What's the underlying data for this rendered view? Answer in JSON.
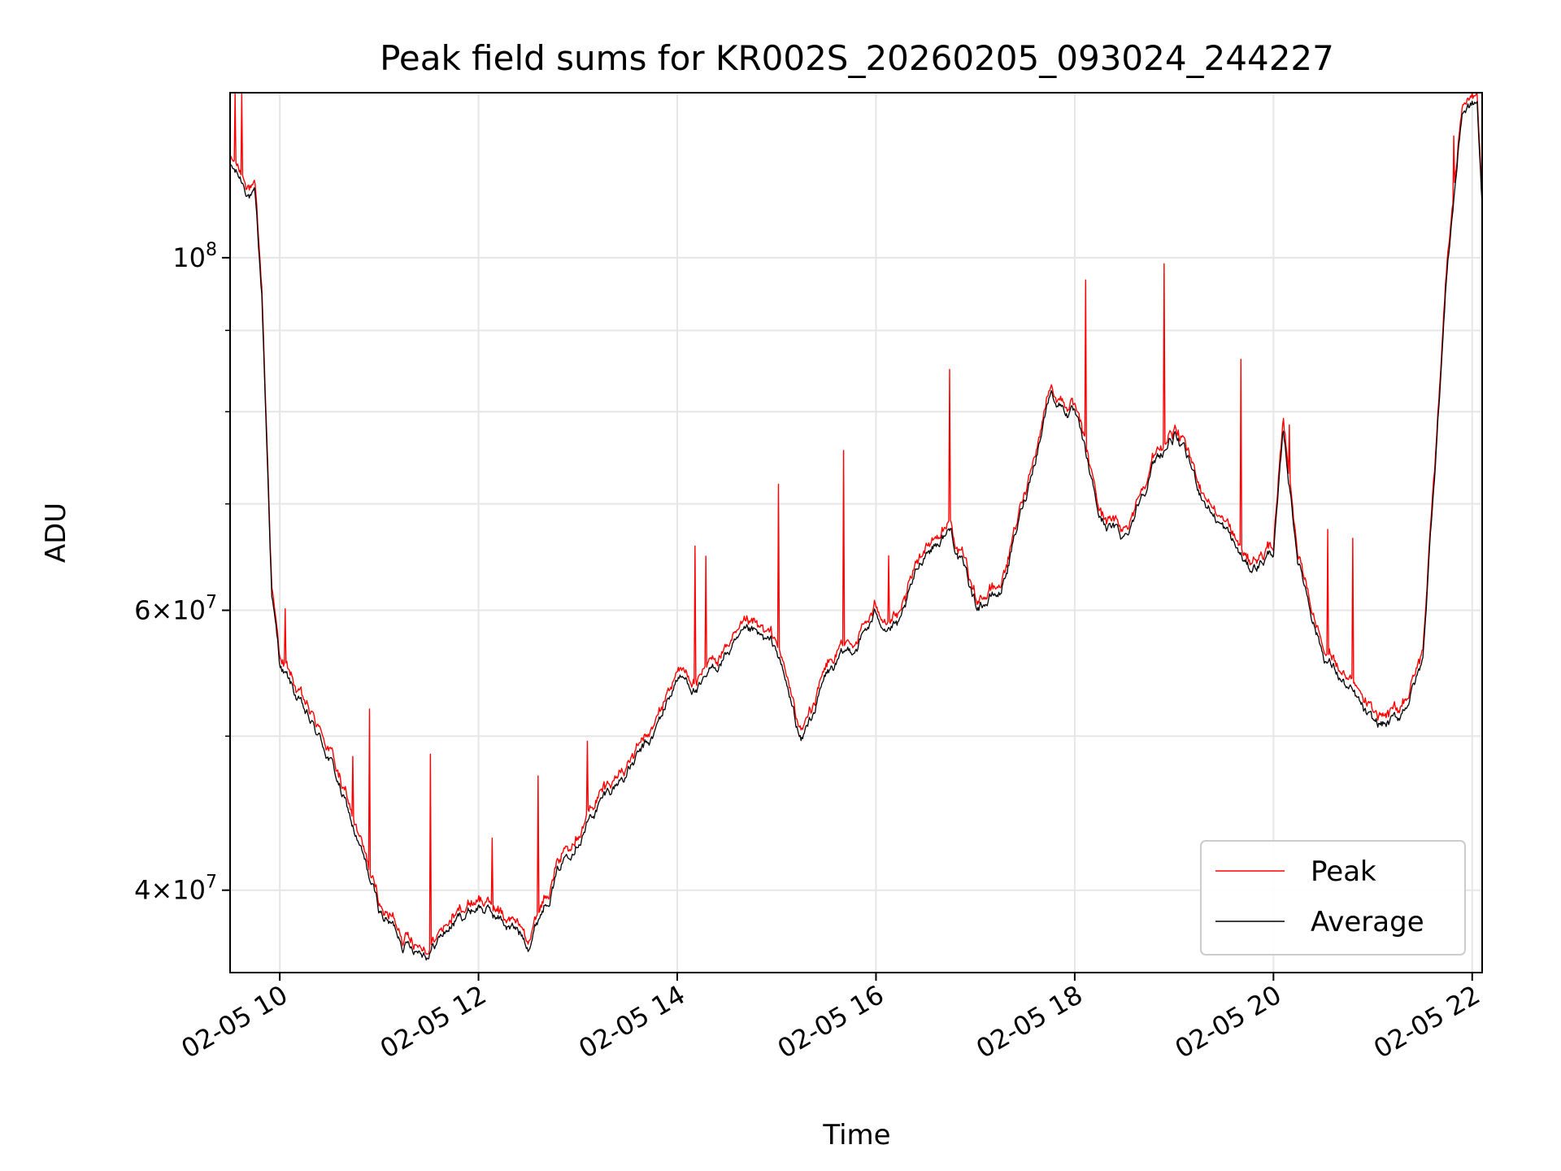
{
  "chart_data": {
    "type": "line",
    "title": "Peak field sums for KR002S_20260205_093024_244227",
    "xlabel": "Time",
    "ylabel": "ADU",
    "yscale": "log",
    "xlim": [
      9.5,
      22.1
    ],
    "ylim": [
      35500000,
      127000000
    ],
    "grid": true,
    "legend_position": "lower-right",
    "x_ticks": [
      {
        "value": 10,
        "label": "02-05 10"
      },
      {
        "value": 12,
        "label": "02-05 12"
      },
      {
        "value": 14,
        "label": "02-05 14"
      },
      {
        "value": 16,
        "label": "02-05 16"
      },
      {
        "value": 18,
        "label": "02-05 18"
      },
      {
        "value": 20,
        "label": "02-05 20"
      },
      {
        "value": 22,
        "label": "02-05 22"
      }
    ],
    "y_major_ticks": [
      {
        "value": 40000000,
        "mantissa": "4",
        "exp": "7"
      },
      {
        "value": 60000000,
        "mantissa": "6",
        "exp": "7"
      },
      {
        "value": 100000000,
        "mantissa": "",
        "exp": "8"
      }
    ],
    "y_minor_ticks": [
      40000000,
      50000000,
      60000000,
      70000000,
      80000000,
      90000000,
      100000000
    ],
    "series": [
      {
        "name": "Peak",
        "color": "#ff0000",
        "anchors": [
          [
            9.5,
            115000000
          ],
          [
            9.75,
            110000000
          ],
          [
            9.82,
            95000000
          ],
          [
            9.92,
            62000000
          ],
          [
            10.0,
            56000000
          ],
          [
            10.25,
            52000000
          ],
          [
            10.5,
            49000000
          ],
          [
            10.75,
            44000000
          ],
          [
            11.0,
            39000000
          ],
          [
            11.25,
            37500000
          ],
          [
            11.5,
            37000000
          ],
          [
            11.75,
            38500000
          ],
          [
            12.0,
            39500000
          ],
          [
            12.25,
            38500000
          ],
          [
            12.5,
            37500000
          ],
          [
            12.75,
            41000000
          ],
          [
            13.0,
            44000000
          ],
          [
            13.25,
            46000000
          ],
          [
            13.5,
            48000000
          ],
          [
            13.75,
            50000000
          ],
          [
            14.0,
            55000000
          ],
          [
            14.25,
            54000000
          ],
          [
            14.5,
            57000000
          ],
          [
            14.75,
            58000000
          ],
          [
            15.0,
            57000000
          ],
          [
            15.25,
            50000000
          ],
          [
            15.5,
            55000000
          ],
          [
            15.75,
            57000000
          ],
          [
            16.0,
            60000000
          ],
          [
            16.25,
            59000000
          ],
          [
            16.5,
            66000000
          ],
          [
            16.75,
            68000000
          ],
          [
            17.0,
            61000000
          ],
          [
            17.25,
            62000000
          ],
          [
            17.5,
            71000000
          ],
          [
            17.75,
            83000000
          ],
          [
            18.0,
            80000000
          ],
          [
            18.25,
            69000000
          ],
          [
            18.5,
            67000000
          ],
          [
            18.75,
            74000000
          ],
          [
            19.0,
            78000000
          ],
          [
            19.25,
            72000000
          ],
          [
            19.5,
            68000000
          ],
          [
            19.75,
            64000000
          ],
          [
            20.0,
            66000000
          ],
          [
            20.1,
            78000000
          ],
          [
            20.25,
            65000000
          ],
          [
            20.5,
            57000000
          ],
          [
            20.75,
            54000000
          ],
          [
            21.0,
            51000000
          ],
          [
            21.25,
            51500000
          ],
          [
            21.5,
            56000000
          ],
          [
            21.75,
            100000000
          ],
          [
            21.9,
            125000000
          ],
          [
            22.05,
            126000000
          ],
          [
            22.1,
            108000000
          ]
        ]
      },
      {
        "name": "Average",
        "color": "#000000",
        "anchors": [
          [
            9.5,
            114000000
          ],
          [
            9.75,
            109000000
          ],
          [
            9.82,
            94000000
          ],
          [
            9.92,
            61500000
          ],
          [
            10.0,
            55500000
          ],
          [
            10.25,
            51500000
          ],
          [
            10.5,
            48500000
          ],
          [
            10.75,
            43500000
          ],
          [
            11.0,
            38800000
          ],
          [
            11.25,
            37200000
          ],
          [
            11.5,
            36800000
          ],
          [
            11.75,
            38200000
          ],
          [
            12.0,
            39200000
          ],
          [
            12.25,
            38200000
          ],
          [
            12.5,
            37200000
          ],
          [
            12.75,
            40600000
          ],
          [
            13.0,
            43600000
          ],
          [
            13.25,
            45600000
          ],
          [
            13.5,
            47600000
          ],
          [
            13.75,
            49600000
          ],
          [
            14.0,
            54500000
          ],
          [
            14.25,
            53500000
          ],
          [
            14.5,
            56500000
          ],
          [
            14.75,
            57500000
          ],
          [
            15.0,
            56500000
          ],
          [
            15.25,
            49500000
          ],
          [
            15.5,
            54500000
          ],
          [
            15.75,
            56500000
          ],
          [
            16.0,
            59500000
          ],
          [
            16.25,
            58500000
          ],
          [
            16.5,
            65500000
          ],
          [
            16.75,
            67500000
          ],
          [
            17.0,
            60500000
          ],
          [
            17.25,
            61500000
          ],
          [
            17.5,
            70500000
          ],
          [
            17.75,
            82500000
          ],
          [
            18.0,
            79500000
          ],
          [
            18.25,
            68500000
          ],
          [
            18.5,
            66500000
          ],
          [
            18.75,
            73500000
          ],
          [
            19.0,
            77500000
          ],
          [
            19.25,
            71500000
          ],
          [
            19.5,
            67500000
          ],
          [
            19.75,
            63500000
          ],
          [
            20.0,
            65500000
          ],
          [
            20.1,
            77000000
          ],
          [
            20.25,
            64500000
          ],
          [
            20.5,
            56500000
          ],
          [
            20.75,
            53500000
          ],
          [
            21.0,
            50500000
          ],
          [
            21.25,
            51000000
          ],
          [
            21.5,
            55500000
          ],
          [
            21.75,
            99000000
          ],
          [
            21.9,
            124000000
          ],
          [
            22.05,
            125000000
          ],
          [
            22.1,
            107000000
          ]
        ]
      }
    ]
  }
}
